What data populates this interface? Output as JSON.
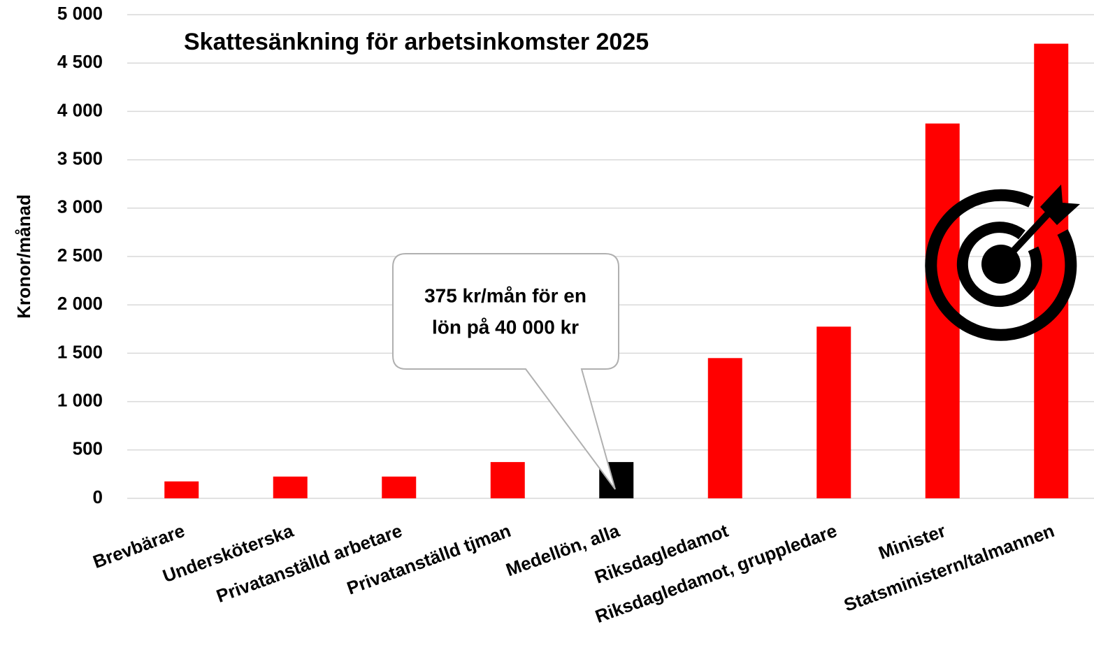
{
  "chart_data": {
    "type": "bar",
    "title": "Skattesänkning för arbetsinkomster 2025",
    "y_label": "Kronor/månad",
    "categories": [
      "Brevbärare",
      "Undersköterska",
      "Privatanställd arbetare",
      "Privatanställd tjman",
      "Medellön, alla",
      "Riksdagledamot",
      "Riksdagledamot, gruppledare",
      "Minister",
      "Statsministern/talmannen"
    ],
    "values": [
      175,
      225,
      225,
      375,
      375,
      1450,
      1775,
      3875,
      4700
    ],
    "colors": [
      "#ff0000",
      "#ff0000",
      "#ff0000",
      "#ff0000",
      "#000000",
      "#ff0000",
      "#ff0000",
      "#ff0000",
      "#ff0000"
    ],
    "ylim": [
      0,
      5000
    ],
    "yticks": [
      0,
      500,
      {
        "value": 1000,
        "label": "1 000"
      },
      {
        "value": 1500,
        "label": "1 500"
      },
      {
        "value": 2000,
        "label": "2 000"
      },
      {
        "value": 2500,
        "label": "2 500"
      },
      {
        "value": 3000,
        "label": "3 000"
      },
      {
        "value": 3500,
        "label": "3 500"
      },
      {
        "value": 4000,
        "label": "4 000"
      },
      {
        "value": 4500,
        "label": "4 500"
      },
      {
        "value": 5000,
        "label": "5 000"
      }
    ],
    "grid": true,
    "annotation": [
      "375 kr/mån för en",
      "lön på 40 000 kr"
    ]
  }
}
